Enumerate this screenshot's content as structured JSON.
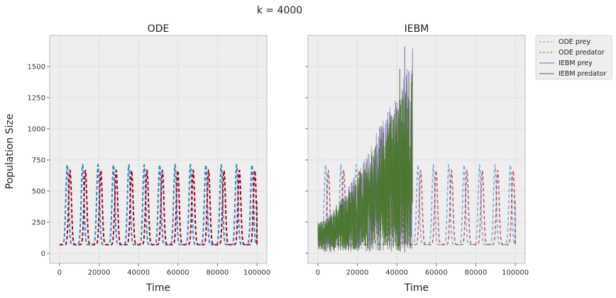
{
  "figure": {
    "suptitle": "k = 4000",
    "ylabel": "Population Size"
  },
  "colors": {
    "ode_prey": "#348ABD",
    "ode_predator": "#A60628",
    "iebm_prey": "#7A68A6",
    "iebm_predator": "#467821",
    "axes_bg": "#EEEEEE",
    "grid": "#CCCCCC"
  },
  "chart_data": [
    {
      "type": "line",
      "title": "ODE",
      "xlabel": "Time",
      "ylabel": "Population Size",
      "xlim": [
        -5000,
        105000
      ],
      "ylim": [
        -80,
        1750
      ],
      "xticks": [
        0,
        20000,
        40000,
        60000,
        80000,
        100000
      ],
      "yticks": [
        0,
        250,
        500,
        750,
        1000,
        1250,
        1500
      ],
      "grid": true,
      "series": [
        {
          "name": "ODE prey",
          "style": "dashed",
          "period": 7800,
          "min": 70,
          "max": 710,
          "phase": 3900,
          "x_range": [
            0,
            100000
          ],
          "end_value": 415
        },
        {
          "name": "ODE predator",
          "style": "dashed",
          "period": 7800,
          "min": 70,
          "max": 665,
          "phase": 5300,
          "x_range": [
            0,
            100000
          ],
          "end_value": 75
        }
      ]
    },
    {
      "type": "line",
      "title": "IEBM",
      "xlabel": "Time",
      "xlim": [
        -5000,
        105000
      ],
      "ylim": [
        -80,
        1750
      ],
      "xticks": [
        0,
        20000,
        40000,
        60000,
        80000,
        100000
      ],
      "yticks": [
        0,
        250,
        500,
        750,
        1000,
        1250,
        1500
      ],
      "grid": true,
      "legend_position": "outside-top-right",
      "series": [
        {
          "name": "ODE prey",
          "style": "dashed-faded",
          "period": 7800,
          "min": 70,
          "max": 710,
          "phase": 3900,
          "x_range": [
            0,
            100000
          ],
          "end_value": 415
        },
        {
          "name": "ODE predator",
          "style": "dashed-faded",
          "period": 7800,
          "min": 70,
          "max": 665,
          "phase": 5300,
          "x_range": [
            0,
            100000
          ],
          "end_value": 75
        },
        {
          "name": "IEBM prey",
          "style": "solid",
          "x_range": [
            0,
            48000
          ],
          "peak_max": 1660,
          "peak_at": 44000,
          "min": 10
        },
        {
          "name": "IEBM predator",
          "style": "solid",
          "x_range": [
            0,
            48000
          ],
          "peak_max": 1480,
          "peak_at": 41500,
          "min": 20
        }
      ],
      "legend": [
        "ODE prey",
        "ODE predator",
        "IEBM prey",
        "IEBM predator"
      ]
    }
  ]
}
